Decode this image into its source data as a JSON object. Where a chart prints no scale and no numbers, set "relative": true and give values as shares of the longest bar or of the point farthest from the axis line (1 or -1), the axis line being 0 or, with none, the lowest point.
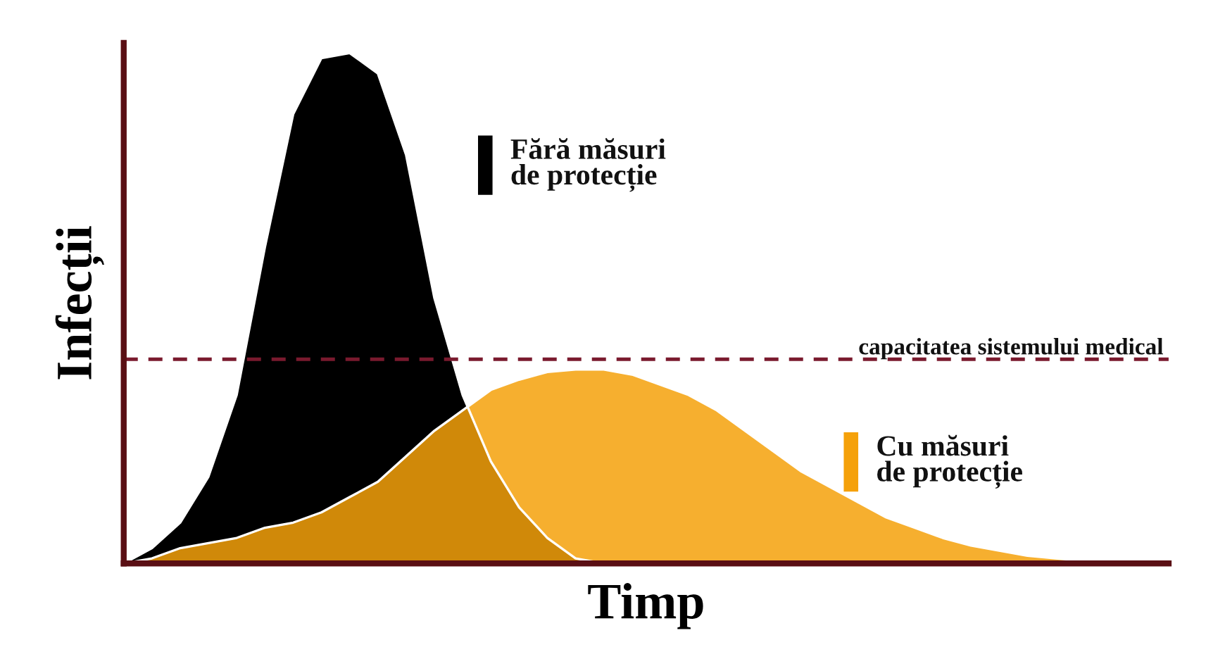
{
  "chart_data": {
    "type": "area",
    "relative": true,
    "xlabel": "Timp",
    "ylabel": "Infecții",
    "categories": [
      null,
      null,
      null,
      null,
      null,
      null,
      null,
      null,
      null,
      null,
      null,
      null,
      null,
      null,
      null,
      null,
      null,
      null,
      null,
      null,
      null,
      null,
      null,
      null,
      null,
      null,
      null,
      null,
      null,
      null,
      null,
      null,
      null,
      null,
      null,
      null,
      null,
      null
    ],
    "series": [
      {
        "name": "Fără măsuri\nde protecție",
        "color": "#000000",
        "values": [
          0,
          0.03,
          0.08,
          0.17,
          0.33,
          0.62,
          0.88,
          0.99,
          1.0,
          0.96,
          0.8,
          0.52,
          0.33,
          0.2,
          0.11,
          0.05,
          0.01,
          0,
          0,
          0,
          0,
          0,
          0,
          0,
          0,
          0,
          0,
          0,
          0,
          0,
          0,
          0,
          0,
          0,
          0,
          0,
          0,
          0
        ]
      },
      {
        "name": "Cu măsuri\nde protecție",
        "color": "#f5a10a",
        "values": [
          0,
          0.01,
          0.03,
          0.04,
          0.05,
          0.07,
          0.08,
          0.1,
          0.13,
          0.16,
          0.21,
          0.26,
          0.3,
          0.34,
          0.36,
          0.375,
          0.38,
          0.38,
          0.37,
          0.35,
          0.33,
          0.3,
          0.26,
          0.22,
          0.18,
          0.15,
          0.12,
          0.09,
          0.07,
          0.05,
          0.035,
          0.025,
          0.015,
          0.01,
          0.005,
          0,
          0,
          0
        ]
      }
    ],
    "ref_lines": [
      {
        "axis": "y",
        "value": 0.4,
        "label": "capacitatea sistemului medical",
        "color": "#7a1a2e",
        "line_style": "dashed"
      }
    ],
    "legend": "right"
  }
}
